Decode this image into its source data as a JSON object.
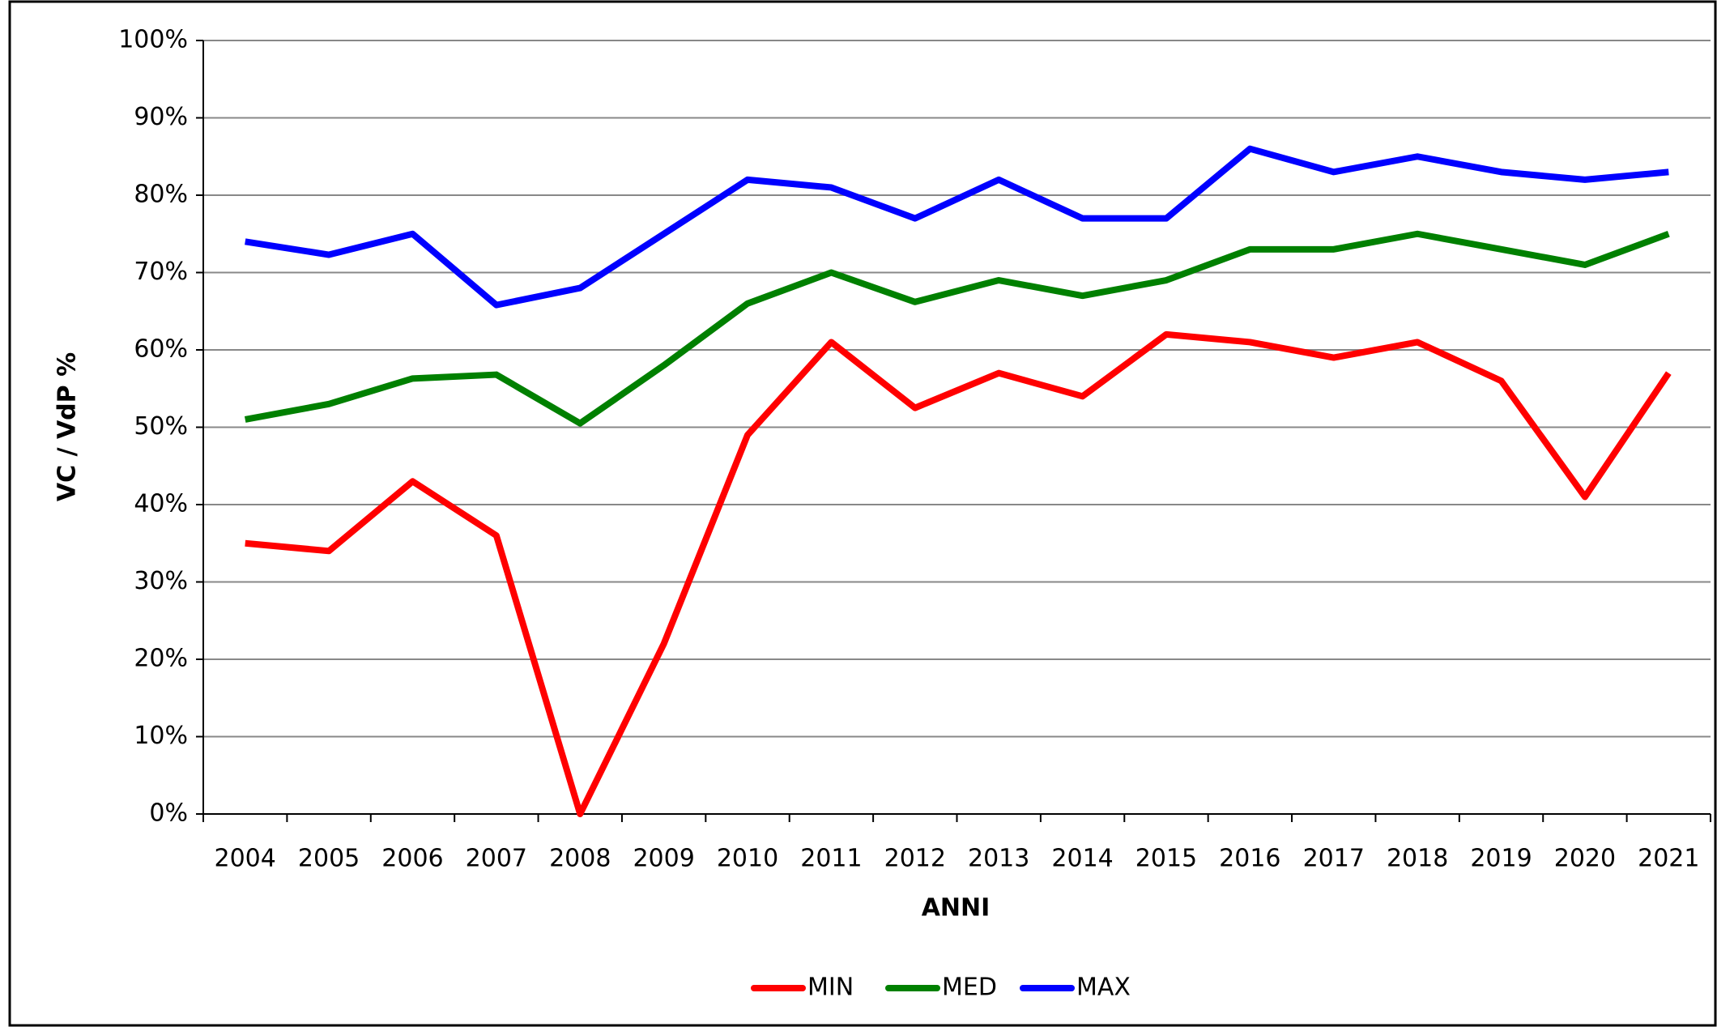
{
  "chart_data": {
    "type": "line",
    "x_label": "ANNI",
    "y_label": "VC / VdP %",
    "categories": [
      "2004",
      "2005",
      "2006",
      "2007",
      "2008",
      "2009",
      "2010",
      "2011",
      "2012",
      "2013",
      "2014",
      "2015",
      "2016",
      "2017",
      "2018",
      "2019",
      "2020",
      "2021"
    ],
    "series": [
      {
        "name": "MIN",
        "color": "#ff0000",
        "values": [
          35,
          34,
          43,
          36,
          0,
          22,
          49,
          61,
          52.5,
          57,
          54,
          62,
          61,
          59,
          61,
          56,
          41,
          57
        ]
      },
      {
        "name": "MED",
        "color": "#008000",
        "values": [
          51,
          53,
          56.3,
          56.8,
          50.5,
          58,
          66,
          70,
          66.2,
          69,
          67,
          69,
          73,
          73,
          75,
          73,
          71,
          75
        ]
      },
      {
        "name": "MAX",
        "color": "#0000ff",
        "values": [
          74,
          72.3,
          75,
          65.8,
          68,
          75,
          82,
          81,
          77,
          82,
          77,
          77,
          86,
          83,
          85,
          83,
          82,
          83
        ]
      }
    ],
    "ylim": [
      0,
      100
    ],
    "yticks": [
      {
        "value": 0,
        "label": "0%"
      },
      {
        "value": 10,
        "label": "10%"
      },
      {
        "value": 20,
        "label": "20%"
      },
      {
        "value": 30,
        "label": "30%"
      },
      {
        "value": 40,
        "label": "40%"
      },
      {
        "value": 50,
        "label": "50%"
      },
      {
        "value": 60,
        "label": "60%"
      },
      {
        "value": 70,
        "label": "70%"
      },
      {
        "value": 80,
        "label": "80%"
      },
      {
        "value": 90,
        "label": "90%"
      },
      {
        "value": 100,
        "label": "100%"
      }
    ],
    "grid": true,
    "legend": "bottom"
  }
}
